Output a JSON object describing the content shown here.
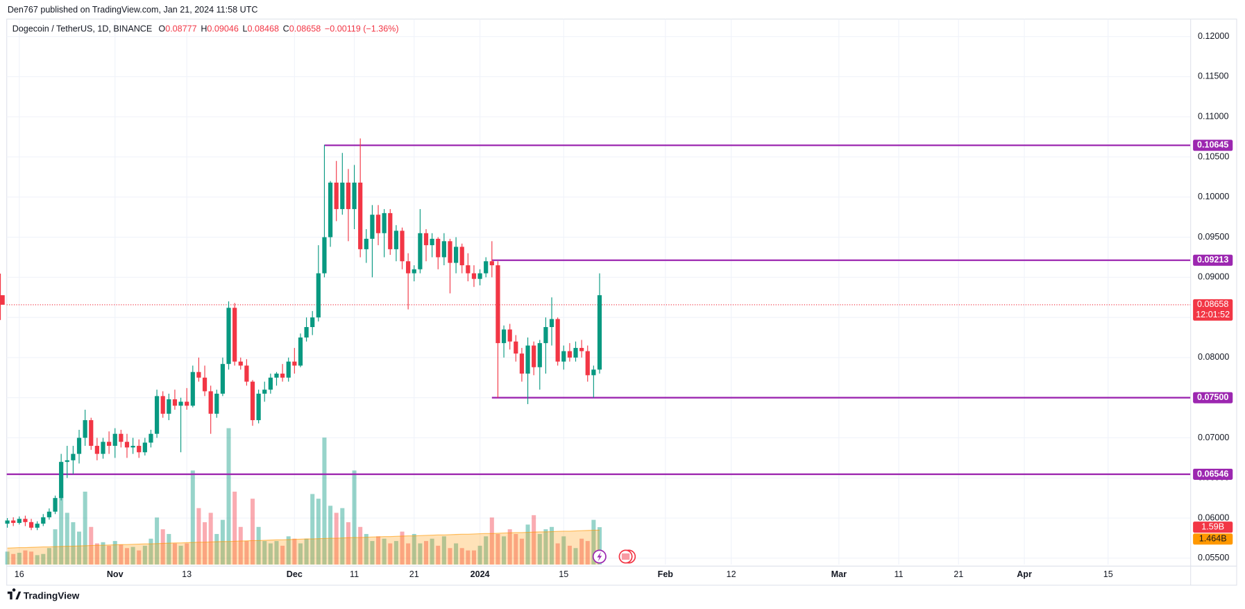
{
  "chart_data": {
    "type": "candlestick",
    "attribution": "Den767 published on TradingView.com, Jan 21, 2024 11:58 UTC",
    "symbol": "Dogecoin / TetherUS, 1D, BINANCE",
    "legend": [
      {
        "key": "O",
        "text": "0.08777"
      },
      {
        "key": "H",
        "text": "0.09046"
      },
      {
        "key": "L",
        "text": "0.08468"
      },
      {
        "key": "C",
        "text": "0.08658"
      },
      {
        "key": "",
        "text": "−0.00119 (−1.36%)"
      }
    ],
    "up_color": "#089981",
    "down_color": "#f23645",
    "level_color": "#9c27b0",
    "volume_ma_color": "#ff9800",
    "x": [
      14,
      15,
      16,
      17,
      18,
      19,
      20,
      21,
      22,
      23,
      24,
      25,
      26,
      27,
      28,
      29,
      30,
      31,
      32,
      33,
      34,
      35,
      36,
      37,
      38,
      39,
      40,
      41,
      42,
      43,
      44,
      45,
      46,
      47,
      48,
      49,
      50,
      51,
      52,
      53,
      54,
      55,
      56,
      57,
      58,
      59,
      60,
      61,
      62,
      63,
      64,
      65,
      66,
      67,
      68,
      69,
      70,
      71,
      72,
      73,
      74,
      75,
      76,
      77,
      78,
      79,
      80,
      81,
      82,
      83,
      84,
      85,
      86,
      87,
      88,
      89,
      90,
      91,
      92,
      93,
      94,
      95,
      96,
      97,
      98,
      99,
      100,
      101,
      102,
      103,
      104,
      105,
      106,
      107,
      108,
      109,
      110,
      111,
      112,
      113
    ],
    "ohlc": [
      [
        0.0593,
        0.06,
        0.0588,
        0.0597
      ],
      [
        0.0597,
        0.0601,
        0.059,
        0.0594
      ],
      [
        0.0594,
        0.0602,
        0.0592,
        0.0599
      ],
      [
        0.0599,
        0.0603,
        0.059,
        0.0595
      ],
      [
        0.0595,
        0.0599,
        0.0585,
        0.0588
      ],
      [
        0.0588,
        0.0596,
        0.0585,
        0.0593
      ],
      [
        0.0593,
        0.0605,
        0.059,
        0.0601
      ],
      [
        0.0601,
        0.0612,
        0.0598,
        0.0608
      ],
      [
        0.0608,
        0.0628,
        0.0605,
        0.0625
      ],
      [
        0.0625,
        0.068,
        0.0622,
        0.067
      ],
      [
        0.067,
        0.069,
        0.065,
        0.0672
      ],
      [
        0.0672,
        0.069,
        0.0655,
        0.068
      ],
      [
        0.068,
        0.071,
        0.0668,
        0.07
      ],
      [
        0.07,
        0.0735,
        0.069,
        0.0722
      ],
      [
        0.0722,
        0.0725,
        0.0685,
        0.069
      ],
      [
        0.069,
        0.07,
        0.0672,
        0.068
      ],
      [
        0.068,
        0.07,
        0.0674,
        0.0695
      ],
      [
        0.0695,
        0.0708,
        0.068,
        0.069
      ],
      [
        0.069,
        0.0712,
        0.0675,
        0.0705
      ],
      [
        0.0705,
        0.071,
        0.0688,
        0.0695
      ],
      [
        0.0695,
        0.0705,
        0.0675,
        0.0688
      ],
      [
        0.0688,
        0.07,
        0.068,
        0.069
      ],
      [
        0.069,
        0.0698,
        0.0675,
        0.0682
      ],
      [
        0.0682,
        0.07,
        0.0678,
        0.0694
      ],
      [
        0.0694,
        0.071,
        0.0688,
        0.0705
      ],
      [
        0.0705,
        0.076,
        0.07,
        0.0752
      ],
      [
        0.0752,
        0.0758,
        0.0725,
        0.073
      ],
      [
        0.073,
        0.0755,
        0.0722,
        0.0748
      ],
      [
        0.0748,
        0.076,
        0.0735,
        0.074
      ],
      [
        0.074,
        0.075,
        0.0682,
        0.0745
      ],
      [
        0.0745,
        0.0762,
        0.0735,
        0.074
      ],
      [
        0.074,
        0.079,
        0.0738,
        0.0782
      ],
      [
        0.0782,
        0.08,
        0.077,
        0.0775
      ],
      [
        0.0775,
        0.079,
        0.0752,
        0.0758
      ],
      [
        0.0758,
        0.0765,
        0.0705,
        0.073
      ],
      [
        0.073,
        0.076,
        0.0725,
        0.0755
      ],
      [
        0.0755,
        0.08,
        0.0752,
        0.0792
      ],
      [
        0.0792,
        0.087,
        0.0785,
        0.0862
      ],
      [
        0.0862,
        0.0868,
        0.079,
        0.0795
      ],
      [
        0.0795,
        0.08,
        0.0785,
        0.079
      ],
      [
        0.079,
        0.0798,
        0.0765,
        0.077
      ],
      [
        0.077,
        0.0772,
        0.0715,
        0.0722
      ],
      [
        0.0722,
        0.076,
        0.0718,
        0.0755
      ],
      [
        0.0755,
        0.077,
        0.0745,
        0.076
      ],
      [
        0.076,
        0.078,
        0.0755,
        0.0775
      ],
      [
        0.0775,
        0.0782,
        0.0765,
        0.078
      ],
      [
        0.078,
        0.0792,
        0.077,
        0.0775
      ],
      [
        0.0775,
        0.08,
        0.077,
        0.0795
      ],
      [
        0.0795,
        0.0812,
        0.078,
        0.079
      ],
      [
        0.079,
        0.083,
        0.0788,
        0.0825
      ],
      [
        0.0825,
        0.085,
        0.082,
        0.0838
      ],
      [
        0.0838,
        0.0858,
        0.0828,
        0.085
      ],
      [
        0.085,
        0.094,
        0.0845,
        0.0905
      ],
      [
        0.0905,
        0.1065,
        0.09,
        0.095
      ],
      [
        0.095,
        0.102,
        0.0938,
        0.1018
      ],
      [
        0.1018,
        0.1045,
        0.097,
        0.0985
      ],
      [
        0.0985,
        0.1055,
        0.0978,
        0.1018
      ],
      [
        0.1018,
        0.1035,
        0.0945,
        0.0985
      ],
      [
        0.0985,
        0.104,
        0.096,
        0.1018
      ],
      [
        0.1018,
        0.1073,
        0.0925,
        0.0935
      ],
      [
        0.0935,
        0.096,
        0.0918,
        0.0948
      ],
      [
        0.0948,
        0.099,
        0.09,
        0.0978
      ],
      [
        0.0978,
        0.099,
        0.094,
        0.0955
      ],
      [
        0.0955,
        0.0985,
        0.0925,
        0.098
      ],
      [
        0.098,
        0.0985,
        0.0928,
        0.0935
      ],
      [
        0.0935,
        0.0965,
        0.092,
        0.0958
      ],
      [
        0.0958,
        0.0962,
        0.091,
        0.092
      ],
      [
        0.092,
        0.093,
        0.086,
        0.0905
      ],
      [
        0.0905,
        0.0915,
        0.0895,
        0.091
      ],
      [
        0.091,
        0.0985,
        0.0905,
        0.0955
      ],
      [
        0.0955,
        0.096,
        0.092,
        0.094
      ],
      [
        0.094,
        0.0955,
        0.0925,
        0.0948
      ],
      [
        0.0948,
        0.095,
        0.091,
        0.0925
      ],
      [
        0.0925,
        0.0955,
        0.0915,
        0.0945
      ],
      [
        0.0945,
        0.0948,
        0.088,
        0.0918
      ],
      [
        0.0918,
        0.095,
        0.0905,
        0.0938
      ],
      [
        0.0938,
        0.0942,
        0.0905,
        0.0915
      ],
      [
        0.0915,
        0.093,
        0.0895,
        0.0905
      ],
      [
        0.0905,
        0.0915,
        0.0888,
        0.0898
      ],
      [
        0.0898,
        0.091,
        0.089,
        0.0905
      ],
      [
        0.0905,
        0.0925,
        0.09,
        0.092
      ],
      [
        0.092,
        0.0945,
        0.09,
        0.0915
      ],
      [
        0.0915,
        0.092,
        0.075,
        0.0818
      ],
      [
        0.0818,
        0.084,
        0.08,
        0.0835
      ],
      [
        0.0835,
        0.0842,
        0.081,
        0.082
      ],
      [
        0.082,
        0.0828,
        0.0795,
        0.0805
      ],
      [
        0.0805,
        0.0812,
        0.077,
        0.078
      ],
      [
        0.078,
        0.0825,
        0.0742,
        0.0815
      ],
      [
        0.0815,
        0.082,
        0.0778,
        0.0788
      ],
      [
        0.0788,
        0.0822,
        0.076,
        0.0818
      ],
      [
        0.0818,
        0.085,
        0.078,
        0.0838
      ],
      [
        0.0838,
        0.0875,
        0.0815,
        0.0848
      ],
      [
        0.0848,
        0.085,
        0.079,
        0.0795
      ],
      [
        0.0795,
        0.0815,
        0.0785,
        0.0808
      ],
      [
        0.0808,
        0.0818,
        0.0795,
        0.08
      ],
      [
        0.08,
        0.082,
        0.0795,
        0.0812
      ],
      [
        0.0812,
        0.0822,
        0.08,
        0.0808
      ],
      [
        0.0808,
        0.0815,
        0.077,
        0.0778
      ],
      [
        0.0778,
        0.079,
        0.075,
        0.0785
      ],
      [
        0.0785,
        0.0905,
        0.078,
        0.08777
      ],
      [
        0.08777,
        0.09046,
        0.08468,
        0.08658
      ]
    ],
    "volume": [
      0.55,
      0.45,
      0.5,
      0.6,
      0.55,
      0.4,
      0.45,
      0.7,
      1.5,
      2.9,
      2.2,
      1.8,
      1.4,
      3.1,
      1.6,
      0.9,
      0.95,
      0.8,
      1.0,
      0.85,
      0.7,
      0.75,
      0.6,
      0.8,
      1.1,
      2.0,
      1.5,
      1.3,
      0.9,
      0.8,
      0.9,
      4.0,
      2.4,
      1.8,
      2.2,
      1.3,
      1.9,
      5.8,
      3.1,
      1.6,
      1.0,
      2.8,
      1.6,
      1.0,
      0.9,
      1.0,
      0.8,
      1.2,
      1.1,
      0.9,
      1.1,
      3.0,
      2.8,
      5.4,
      2.5,
      2.2,
      2.4,
      1.8,
      4.0,
      1.6,
      1.3,
      1.0,
      1.2,
      1.1,
      0.9,
      1.0,
      1.4,
      0.9,
      1.3,
      0.9,
      1.0,
      1.1,
      0.8,
      1.2,
      0.7,
      0.9,
      0.7,
      0.6,
      0.6,
      0.8,
      1.2,
      2.0,
      1.3,
      1.2,
      1.5,
      1.3,
      1.1,
      1.7,
      2.1,
      1.3,
      1.5,
      1.6,
      0.9,
      1.2,
      0.8,
      0.7,
      1.1,
      1.0,
      1.9,
      1.59
    ],
    "volume_ma": [
      0.7,
      0.71,
      0.72,
      0.72,
      0.73,
      0.74,
      0.75,
      0.75,
      0.76,
      0.77,
      0.78,
      0.78,
      0.79,
      0.8,
      0.81,
      0.82,
      0.82,
      0.83,
      0.84,
      0.85,
      0.85,
      0.86,
      0.87,
      0.88,
      0.88,
      0.89,
      0.9,
      0.91,
      0.92,
      0.92,
      0.93,
      0.94,
      0.95,
      0.95,
      0.96,
      0.97,
      0.98,
      0.98,
      0.99,
      1.0,
      1.01,
      1.02,
      1.02,
      1.03,
      1.04,
      1.05,
      1.05,
      1.06,
      1.07,
      1.08,
      1.09,
      1.09,
      1.1,
      1.11,
      1.12,
      1.12,
      1.13,
      1.14,
      1.15,
      1.15,
      1.16,
      1.17,
      1.18,
      1.19,
      1.19,
      1.2,
      1.21,
      1.22,
      1.22,
      1.23,
      1.24,
      1.25,
      1.26,
      1.26,
      1.27,
      1.28,
      1.29,
      1.29,
      1.3,
      1.31,
      1.32,
      1.32,
      1.33,
      1.34,
      1.35,
      1.36,
      1.36,
      1.37,
      1.38,
      1.39,
      1.39,
      1.4,
      1.41,
      1.42,
      1.42,
      1.43,
      1.44,
      1.45,
      1.46,
      1.464
    ],
    "volume_lim": [
      0,
      23.2
    ],
    "xlim": [
      13.9,
      211.8
    ],
    "xticks": [
      {
        "value": 16,
        "label": "16"
      },
      {
        "value": 32,
        "label": "Nov"
      },
      {
        "value": 44,
        "label": "13"
      },
      {
        "value": 62,
        "label": "Dec"
      },
      {
        "value": 72,
        "label": "11"
      },
      {
        "value": 82,
        "label": "21"
      },
      {
        "value": 93,
        "label": "2024"
      },
      {
        "value": 107,
        "label": "15"
      },
      {
        "value": 124,
        "label": "Feb"
      },
      {
        "value": 135,
        "label": "12"
      },
      {
        "value": 153,
        "label": "Mar"
      },
      {
        "value": 163,
        "label": "11"
      },
      {
        "value": 173,
        "label": "21"
      },
      {
        "value": 184,
        "label": "Apr"
      },
      {
        "value": 198,
        "label": "15"
      }
    ],
    "ylim": [
      0.05421,
      0.12218
    ],
    "yticks": [
      {
        "value": 0.055,
        "label": "0.05500"
      },
      {
        "value": 0.06,
        "label": "0.06000"
      },
      {
        "value": 0.065,
        "label": "0.06500"
      },
      {
        "value": 0.07,
        "label": "0.07000"
      },
      {
        "value": 0.075,
        "label": "0.07500"
      },
      {
        "value": 0.08,
        "label": "0.08000"
      },
      {
        "value": 0.085,
        "label": "0.08500"
      },
      {
        "value": 0.09,
        "label": "0.09000"
      },
      {
        "value": 0.095,
        "label": "0.09500"
      },
      {
        "value": 0.1,
        "label": "0.10000"
      },
      {
        "value": 0.105,
        "label": "0.10500"
      },
      {
        "value": 0.11,
        "label": "0.11000"
      },
      {
        "value": 0.115,
        "label": "0.11500"
      },
      {
        "value": 0.12,
        "label": "0.12000"
      }
    ],
    "grid": true,
    "levels": [
      {
        "value": 0.10645,
        "label": "0.10645",
        "start": 67
      },
      {
        "value": 0.09213,
        "label": "0.09213",
        "start": 95
      },
      {
        "value": 0.075,
        "label": "0.07500",
        "start": 95
      },
      {
        "value": 0.06546,
        "label": "0.06546",
        "start": 13.9
      }
    ],
    "last_price": {
      "value": 0.08658,
      "label": "0.08658",
      "countdown": "12:01:52"
    },
    "volume_label": {
      "value": 1.59,
      "label": "1.59B"
    },
    "volume_ma_label": {
      "value": 1.464,
      "label": "1.464B"
    },
    "footer": "TradingView"
  }
}
